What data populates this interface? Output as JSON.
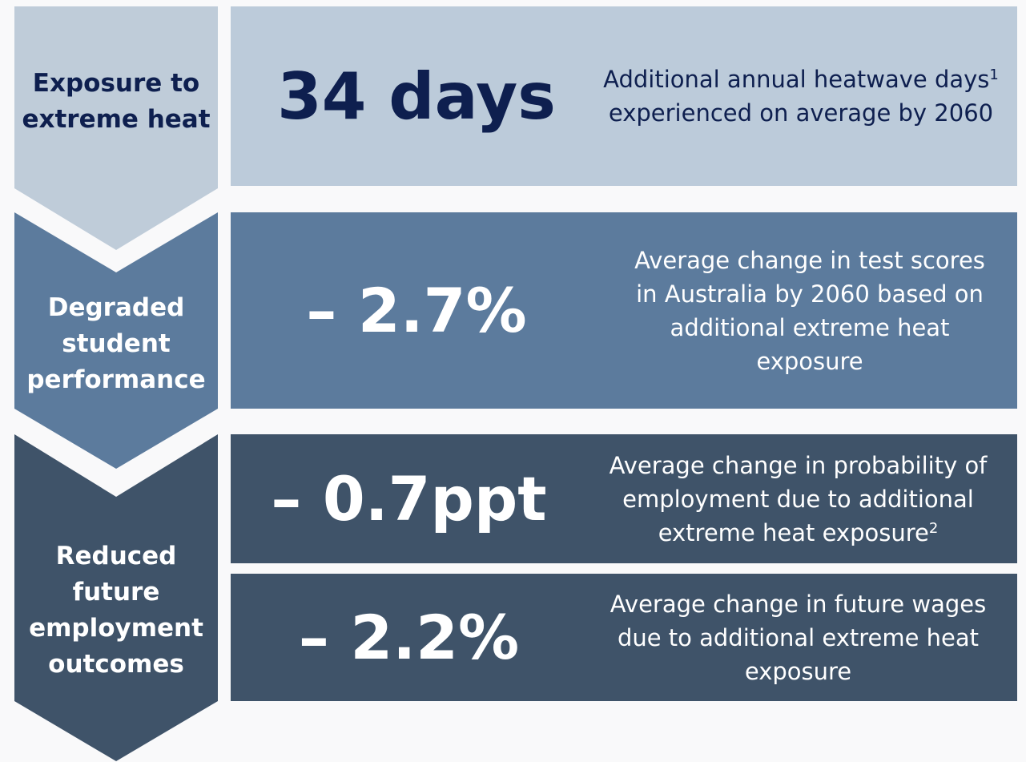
{
  "stages": [
    {
      "label": "Exposure to extreme heat"
    },
    {
      "label": "Degraded student performance"
    },
    {
      "label": "Reduced future employment outcomes"
    }
  ],
  "rows": [
    {
      "stat": "34 days",
      "desc_before": "Additional annual heatwave days",
      "footnote": "1",
      "desc_after": " experienced on average by 2060"
    },
    {
      "stat": "– 2.7%",
      "desc_before": "Average change in test scores in Australia by 2060 based on additional extreme heat exposure"
    },
    {
      "stat": "– 0.7ppt",
      "desc_before": "Average change in probability of employment due to additional extreme heat exposure",
      "footnote": "2"
    },
    {
      "stat": "– 2.2%",
      "desc_before": "Average change in future wages due to additional extreme heat exposure"
    }
  ]
}
